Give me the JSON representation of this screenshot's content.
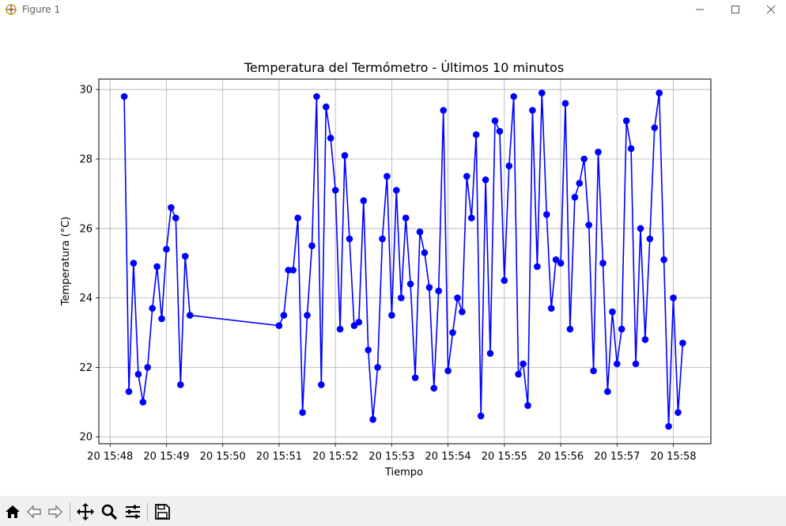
{
  "window": {
    "title": "Figure 1",
    "icons": [
      "figure-app-icon",
      "minimize-icon",
      "maximize-icon",
      "close-icon"
    ]
  },
  "toolbar": {
    "icons": [
      "home-icon",
      "back-icon",
      "forward-icon",
      "pan-icon",
      "zoom-icon",
      "configure-subplots-icon",
      "save-icon"
    ]
  },
  "chart_data": {
    "type": "line",
    "title": "Temperatura del Termómetro - Últimos 10 minutos",
    "xlabel": "Tiempo",
    "ylabel": "Temperatura (°C)",
    "x_axis": "time",
    "xlim": [
      "15:47:48",
      "15:58:40"
    ],
    "ylim": [
      19.8,
      30.3
    ],
    "x_ticks": [
      "15:48",
      "15:49",
      "15:50",
      "15:51",
      "15:52",
      "15:53",
      "15:54",
      "15:55",
      "15:56",
      "15:57",
      "15:58"
    ],
    "x_tick_labels": [
      "20 15:48",
      "20 15:49",
      "20 15:50",
      "20 15:51",
      "20 15:52",
      "20 15:53",
      "20 15:54",
      "20 15:55",
      "20 15:56",
      "20 15:57",
      "20 15:58"
    ],
    "y_ticks": [
      20,
      22,
      24,
      26,
      28,
      30
    ],
    "grid": true,
    "marker": "circle",
    "color": "#0000ff",
    "series": [
      {
        "x": [
          "15:48:15",
          "15:48:20",
          "15:48:25",
          "15:48:30",
          "15:48:35",
          "15:48:40",
          "15:48:45",
          "15:48:50",
          "15:48:55",
          "15:49:00",
          "15:49:05",
          "15:49:10",
          "15:49:15",
          "15:49:20",
          "15:49:25",
          "15:51:00",
          "15:51:05",
          "15:51:10",
          "15:51:15",
          "15:51:20",
          "15:51:25",
          "15:51:30",
          "15:51:35",
          "15:51:40",
          "15:51:45",
          "15:51:50",
          "15:51:55",
          "15:52:00",
          "15:52:05",
          "15:52:10",
          "15:52:15",
          "15:52:20",
          "15:52:25",
          "15:52:30",
          "15:52:35",
          "15:52:40",
          "15:52:45",
          "15:52:50",
          "15:52:55",
          "15:53:00",
          "15:53:05",
          "15:53:10",
          "15:53:15",
          "15:53:20",
          "15:53:25",
          "15:53:30",
          "15:53:35",
          "15:53:40",
          "15:53:45",
          "15:53:50",
          "15:53:55",
          "15:54:00",
          "15:54:05",
          "15:54:10",
          "15:54:15",
          "15:54:20",
          "15:54:25",
          "15:54:30",
          "15:54:35",
          "15:54:40",
          "15:54:45",
          "15:54:50",
          "15:54:55",
          "15:55:00",
          "15:55:05",
          "15:55:10",
          "15:55:15",
          "15:55:20",
          "15:55:25",
          "15:55:30",
          "15:55:35",
          "15:55:40",
          "15:55:45",
          "15:55:50",
          "15:55:55",
          "15:56:00",
          "15:56:05",
          "15:56:10",
          "15:56:15",
          "15:56:20",
          "15:56:25",
          "15:56:30",
          "15:56:35",
          "15:56:40",
          "15:56:45",
          "15:56:50",
          "15:56:55",
          "15:57:00",
          "15:57:05",
          "15:57:10",
          "15:57:15",
          "15:57:20",
          "15:57:25",
          "15:57:30",
          "15:57:35",
          "15:57:40",
          "15:57:45",
          "15:57:50",
          "15:57:55",
          "15:58:00",
          "15:58:05",
          "15:58:10"
        ],
        "y": [
          29.8,
          21.3,
          25.0,
          21.8,
          21.0,
          22.0,
          23.7,
          24.9,
          23.4,
          25.4,
          26.6,
          26.3,
          21.5,
          25.2,
          23.5,
          23.2,
          23.5,
          24.8,
          24.8,
          26.3,
          20.7,
          23.5,
          25.5,
          29.8,
          21.5,
          29.5,
          28.6,
          27.1,
          23.1,
          28.1,
          25.7,
          23.2,
          23.3,
          26.8,
          22.5,
          20.5,
          22.0,
          25.7,
          27.5,
          23.5,
          27.1,
          24.0,
          26.3,
          24.4,
          21.7,
          25.9,
          25.3,
          24.3,
          21.4,
          24.2,
          29.4,
          21.9,
          23.0,
          24.0,
          23.6,
          27.5,
          26.3,
          28.7,
          20.6,
          27.4,
          22.4,
          29.1,
          28.8,
          24.5,
          27.8,
          29.8,
          21.8,
          22.1,
          20.9,
          29.4,
          24.9,
          29.9,
          26.4,
          23.7,
          25.1,
          25.0,
          29.6,
          23.1,
          26.9,
          27.3,
          28.0,
          26.1,
          21.9,
          28.2,
          25.0,
          21.3,
          23.6,
          22.1,
          23.1,
          29.1,
          28.3,
          22.1,
          26.0,
          22.8,
          25.7,
          28.9,
          29.9,
          25.1,
          20.3,
          24.0,
          20.7,
          22.7
        ]
      }
    ]
  }
}
